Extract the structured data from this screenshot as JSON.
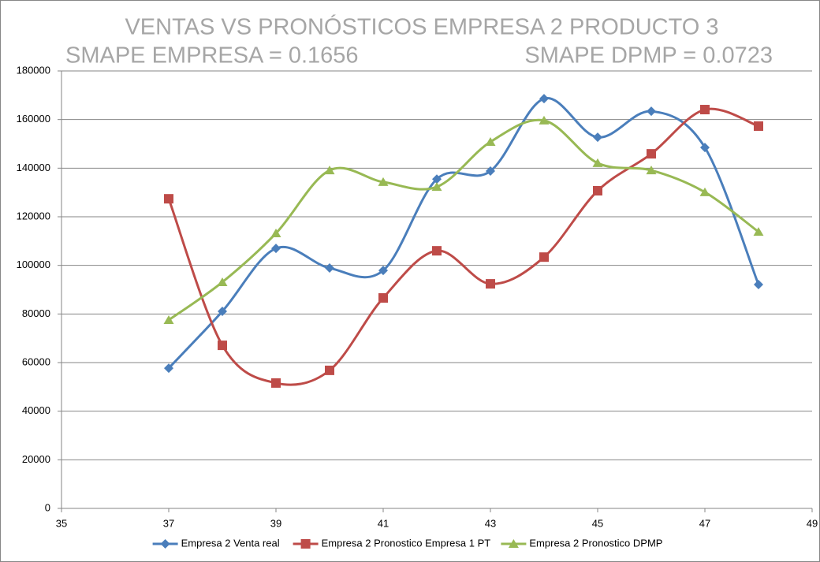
{
  "chart_data": {
    "type": "scatter",
    "title": "VENTAS VS PRONÓSTICOS EMPRESA 2 PRODUCTO 3",
    "annotations": [
      "SMAPE EMPRESA = 0.1656",
      "SMAPE DPMP = 0.0723"
    ],
    "x": [
      37,
      38,
      39,
      40,
      41,
      42,
      43,
      44,
      45,
      46,
      47,
      48
    ],
    "series": [
      {
        "name": "Empresa 2 Venta real",
        "color": "#4a7ebb",
        "marker": "diamond",
        "values": [
          57700,
          81100,
          107000,
          98900,
          97900,
          135500,
          138800,
          168600,
          152700,
          163400,
          148500,
          92100
        ]
      },
      {
        "name": "Empresa 2 Pronostico Empresa 1 PT",
        "color": "#be4b48",
        "marker": "square",
        "values": [
          127400,
          67100,
          51600,
          56800,
          86600,
          106000,
          92400,
          103400,
          130700,
          145900,
          164100,
          157300
        ]
      },
      {
        "name": "Empresa 2 Pronostico DPMP",
        "color": "#98b954",
        "marker": "triangle",
        "values": [
          77500,
          93100,
          113200,
          139100,
          134300,
          132300,
          150800,
          159600,
          142100,
          139100,
          130100,
          113800
        ]
      }
    ],
    "smooth": true,
    "xlim": [
      35,
      49
    ],
    "xticks": [
      35,
      37,
      39,
      41,
      43,
      45,
      47,
      49
    ],
    "ylim": [
      0,
      180000
    ],
    "yticks": [
      0,
      20000,
      40000,
      60000,
      80000,
      100000,
      120000,
      140000,
      160000,
      180000
    ],
    "grid": true,
    "legend": "bottom"
  }
}
